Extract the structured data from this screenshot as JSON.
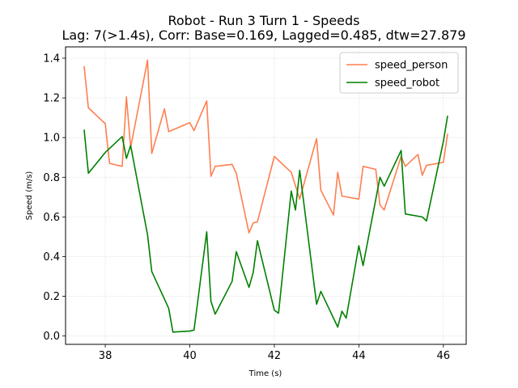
{
  "chart_data": {
    "type": "line",
    "title": "Robot - Run 3 Turn 1 - Speeds",
    "subtitle": "Lag: 7(>1.4s), Corr: Base=0.169, Lagged=0.485, dtw=27.879",
    "xlabel": "Time (s)",
    "ylabel": "Speed (m/s)",
    "xlim": [
      37.06,
      46.54
    ],
    "ylim": [
      -0.042,
      1.457
    ],
    "xticks": [
      38,
      40,
      42,
      44,
      46
    ],
    "yticks": [
      0.0,
      0.2,
      0.4,
      0.6,
      0.8,
      1.0,
      1.2,
      1.4
    ],
    "grid": true,
    "legend_position": "upper right",
    "series": [
      {
        "name": "speed_person",
        "color": "#ff7f50",
        "x": [
          37.5,
          37.6,
          38.0,
          38.1,
          38.4,
          38.5,
          38.6,
          39.0,
          39.1,
          39.4,
          39.5,
          40.0,
          40.1,
          40.4,
          40.5,
          40.6,
          41.0,
          41.1,
          41.4,
          41.5,
          41.6,
          42.0,
          42.4,
          42.6,
          43.0,
          43.1,
          43.4,
          43.5,
          43.6,
          44.0,
          44.1,
          44.4,
          44.5,
          44.6,
          45.0,
          45.1,
          45.4,
          45.5,
          45.6,
          46.0,
          46.1
        ],
        "y": [
          1.36,
          1.15,
          1.07,
          0.87,
          0.855,
          1.205,
          0.95,
          1.39,
          0.92,
          1.145,
          1.03,
          1.075,
          1.035,
          1.185,
          0.805,
          0.855,
          0.865,
          0.82,
          0.52,
          0.57,
          0.575,
          0.905,
          0.825,
          0.69,
          0.995,
          0.735,
          0.61,
          0.825,
          0.705,
          0.69,
          0.855,
          0.84,
          0.66,
          0.635,
          0.905,
          0.855,
          0.915,
          0.81,
          0.86,
          0.875,
          1.02
        ]
      },
      {
        "name": "speed_robot",
        "color": "#008000",
        "x": [
          37.5,
          37.6,
          38.0,
          38.4,
          38.5,
          38.6,
          39.0,
          39.1,
          39.5,
          39.6,
          40.0,
          40.1,
          40.4,
          40.5,
          40.6,
          41.0,
          41.1,
          41.4,
          41.5,
          41.6,
          42.0,
          42.1,
          42.4,
          42.5,
          42.6,
          43.0,
          43.1,
          43.5,
          43.6,
          43.7,
          44.0,
          44.1,
          44.5,
          44.6,
          45.0,
          45.1,
          45.5,
          45.6,
          46.0,
          46.1
        ],
        "y": [
          1.04,
          0.82,
          0.925,
          1.005,
          0.895,
          0.96,
          0.51,
          0.325,
          0.14,
          0.02,
          0.025,
          0.03,
          0.525,
          0.175,
          0.11,
          0.275,
          0.425,
          0.245,
          0.32,
          0.48,
          0.13,
          0.115,
          0.73,
          0.635,
          0.835,
          0.16,
          0.225,
          0.045,
          0.125,
          0.09,
          0.455,
          0.355,
          0.8,
          0.755,
          0.935,
          0.615,
          0.6,
          0.58,
          0.98,
          1.11
        ]
      }
    ]
  }
}
